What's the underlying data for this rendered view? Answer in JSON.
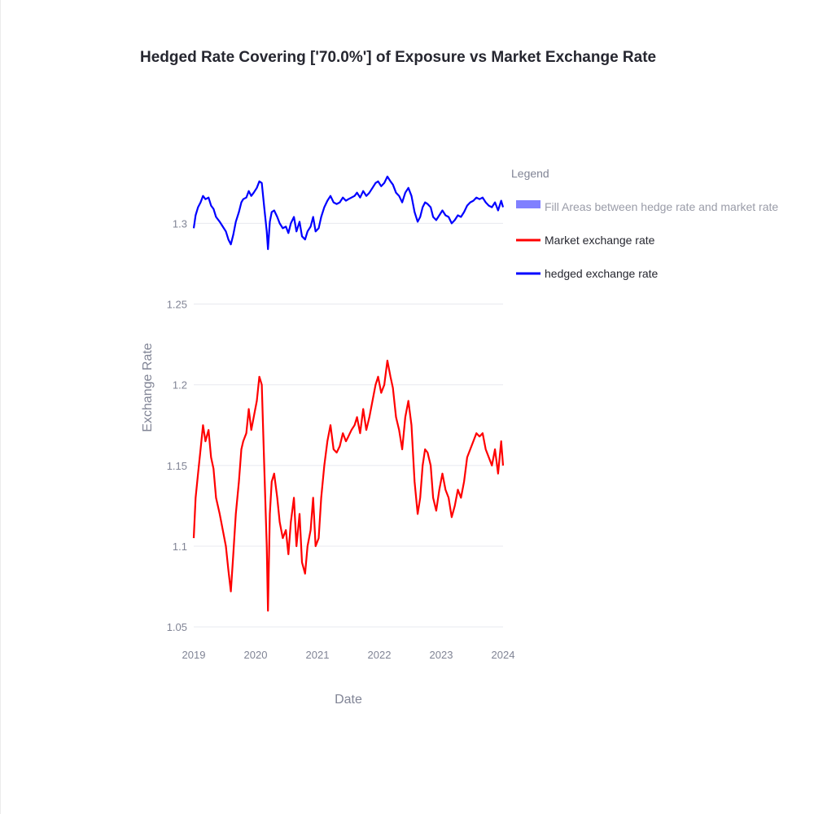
{
  "colors": {
    "market": "#ff0000",
    "hedged": "#0000ff",
    "fill": "#8080ff",
    "grid": "#e8e9ef",
    "text": "#262730",
    "muted": "#808495"
  },
  "chart_data": {
    "type": "line",
    "title": "Hedged Rate Covering ['70.0%'] of Exposure vs Market Exchange Rate",
    "xlabel": "Date",
    "ylabel": "Exchange Rate",
    "x_tick_labels": [
      "2019",
      "2020",
      "2021",
      "2022",
      "2023",
      "2024"
    ],
    "y_tick_labels": [
      "1.05",
      "1.1",
      "1.15",
      "1.2",
      "1.25",
      "1.3"
    ],
    "y_ticks": [
      1.05,
      1.1,
      1.15,
      1.2,
      1.25,
      1.3
    ],
    "xlim": [
      2019.0,
      2024.0
    ],
    "ylim": [
      1.04,
      1.335
    ],
    "grid": true,
    "legend": {
      "title": "Legend",
      "placement": "right",
      "entries": [
        {
          "label": "Fill Areas between hedge rate and market rate",
          "kind": "fill",
          "color": "#8080ff"
        },
        {
          "label": "Market exchange rate",
          "kind": "line",
          "color": "#ff0000"
        },
        {
          "label": "hedged exchange rate",
          "kind": "line",
          "color": "#0000ff"
        }
      ]
    },
    "series": [
      {
        "name": "Market exchange rate",
        "color": "#ff0000",
        "x": [
          2019.0,
          2019.03,
          2019.07,
          2019.11,
          2019.15,
          2019.19,
          2019.24,
          2019.28,
          2019.32,
          2019.36,
          2019.42,
          2019.47,
          2019.52,
          2019.56,
          2019.6,
          2019.64,
          2019.68,
          2019.73,
          2019.77,
          2019.8,
          2019.85,
          2019.89,
          2019.93,
          2019.97,
          2020.02,
          2020.06,
          2020.1,
          2020.14,
          2020.18,
          2020.2,
          2020.23,
          2020.26,
          2020.3,
          2020.35,
          2020.39,
          2020.44,
          2020.49,
          2020.53,
          2020.57,
          2020.62,
          2020.66,
          2020.71,
          2020.75,
          2020.8,
          2020.84,
          2020.89,
          2020.93,
          2020.97,
          2021.02,
          2021.06,
          2021.11,
          2021.16,
          2021.21,
          2021.26,
          2021.31,
          2021.36,
          2021.41,
          2021.46,
          2021.5,
          2021.55,
          2021.6,
          2021.64,
          2021.69,
          2021.74,
          2021.79,
          2021.84,
          2021.89,
          2021.94,
          2021.98,
          2022.03,
          2022.08,
          2022.13,
          2022.18,
          2022.22,
          2022.27,
          2022.32,
          2022.37,
          2022.42,
          2022.47,
          2022.52,
          2022.57,
          2022.62,
          2022.66,
          2022.7,
          2022.74,
          2022.78,
          2022.83,
          2022.87,
          2022.92,
          2022.97,
          2023.02,
          2023.07,
          2023.12,
          2023.17,
          2023.22,
          2023.27,
          2023.32,
          2023.37,
          2023.42,
          2023.47,
          2023.52,
          2023.57,
          2023.62,
          2023.67,
          2023.72,
          2023.77,
          2023.82,
          2023.87,
          2023.92,
          2023.97,
          2024.0
        ],
        "y": [
          1.105,
          1.13,
          1.145,
          1.16,
          1.175,
          1.165,
          1.172,
          1.155,
          1.148,
          1.13,
          1.12,
          1.11,
          1.1,
          1.085,
          1.072,
          1.095,
          1.12,
          1.14,
          1.16,
          1.165,
          1.17,
          1.185,
          1.172,
          1.18,
          1.19,
          1.205,
          1.2,
          1.15,
          1.1,
          1.06,
          1.12,
          1.14,
          1.145,
          1.13,
          1.115,
          1.105,
          1.11,
          1.095,
          1.115,
          1.13,
          1.1,
          1.12,
          1.09,
          1.083,
          1.1,
          1.11,
          1.13,
          1.1,
          1.105,
          1.13,
          1.15,
          1.165,
          1.175,
          1.16,
          1.158,
          1.162,
          1.17,
          1.165,
          1.168,
          1.172,
          1.175,
          1.18,
          1.17,
          1.185,
          1.172,
          1.18,
          1.19,
          1.2,
          1.205,
          1.195,
          1.2,
          1.215,
          1.205,
          1.198,
          1.18,
          1.172,
          1.16,
          1.18,
          1.19,
          1.175,
          1.14,
          1.12,
          1.13,
          1.15,
          1.16,
          1.158,
          1.15,
          1.13,
          1.122,
          1.135,
          1.145,
          1.135,
          1.13,
          1.118,
          1.125,
          1.135,
          1.13,
          1.14,
          1.155,
          1.16,
          1.165,
          1.17,
          1.168,
          1.17,
          1.16,
          1.155,
          1.15,
          1.16,
          1.145,
          1.165,
          1.15
        ]
      },
      {
        "name": "hedged exchange rate",
        "color": "#0000ff",
        "x": [
          2019.0,
          2019.03,
          2019.07,
          2019.11,
          2019.15,
          2019.19,
          2019.24,
          2019.28,
          2019.32,
          2019.36,
          2019.42,
          2019.47,
          2019.52,
          2019.56,
          2019.6,
          2019.64,
          2019.68,
          2019.73,
          2019.77,
          2019.8,
          2019.85,
          2019.89,
          2019.93,
          2019.97,
          2020.02,
          2020.06,
          2020.1,
          2020.14,
          2020.18,
          2020.2,
          2020.23,
          2020.26,
          2020.3,
          2020.35,
          2020.39,
          2020.44,
          2020.49,
          2020.53,
          2020.57,
          2020.62,
          2020.66,
          2020.71,
          2020.75,
          2020.8,
          2020.84,
          2020.89,
          2020.93,
          2020.97,
          2021.02,
          2021.06,
          2021.11,
          2021.16,
          2021.21,
          2021.26,
          2021.31,
          2021.36,
          2021.41,
          2021.46,
          2021.5,
          2021.55,
          2021.6,
          2021.64,
          2021.69,
          2021.74,
          2021.79,
          2021.84,
          2021.89,
          2021.94,
          2021.98,
          2022.03,
          2022.08,
          2022.13,
          2022.18,
          2022.22,
          2022.27,
          2022.32,
          2022.37,
          2022.42,
          2022.47,
          2022.52,
          2022.57,
          2022.62,
          2022.66,
          2022.7,
          2022.74,
          2022.78,
          2022.83,
          2022.87,
          2022.92,
          2022.97,
          2023.02,
          2023.07,
          2023.12,
          2023.17,
          2023.22,
          2023.27,
          2023.32,
          2023.37,
          2023.42,
          2023.47,
          2023.52,
          2023.57,
          2023.62,
          2023.67,
          2023.72,
          2023.77,
          2023.82,
          2023.87,
          2023.92,
          2023.97,
          2024.0
        ],
        "y": [
          1.297,
          1.305,
          1.31,
          1.313,
          1.317,
          1.315,
          1.316,
          1.311,
          1.309,
          1.304,
          1.301,
          1.298,
          1.295,
          1.29,
          1.287,
          1.293,
          1.301,
          1.307,
          1.313,
          1.315,
          1.316,
          1.32,
          1.317,
          1.319,
          1.322,
          1.326,
          1.325,
          1.31,
          1.295,
          1.284,
          1.301,
          1.307,
          1.308,
          1.304,
          1.3,
          1.297,
          1.298,
          1.294,
          1.3,
          1.304,
          1.295,
          1.301,
          1.292,
          1.29,
          1.295,
          1.298,
          1.304,
          1.295,
          1.297,
          1.304,
          1.31,
          1.314,
          1.317,
          1.313,
          1.312,
          1.313,
          1.316,
          1.314,
          1.315,
          1.316,
          1.317,
          1.319,
          1.316,
          1.32,
          1.317,
          1.319,
          1.322,
          1.325,
          1.326,
          1.323,
          1.325,
          1.329,
          1.326,
          1.324,
          1.319,
          1.317,
          1.313,
          1.319,
          1.322,
          1.317,
          1.307,
          1.301,
          1.304,
          1.31,
          1.313,
          1.312,
          1.31,
          1.304,
          1.302,
          1.305,
          1.308,
          1.305,
          1.304,
          1.3,
          1.302,
          1.305,
          1.304,
          1.307,
          1.311,
          1.313,
          1.314,
          1.316,
          1.315,
          1.316,
          1.313,
          1.311,
          1.31,
          1.313,
          1.308,
          1.314,
          1.31
        ]
      }
    ]
  }
}
